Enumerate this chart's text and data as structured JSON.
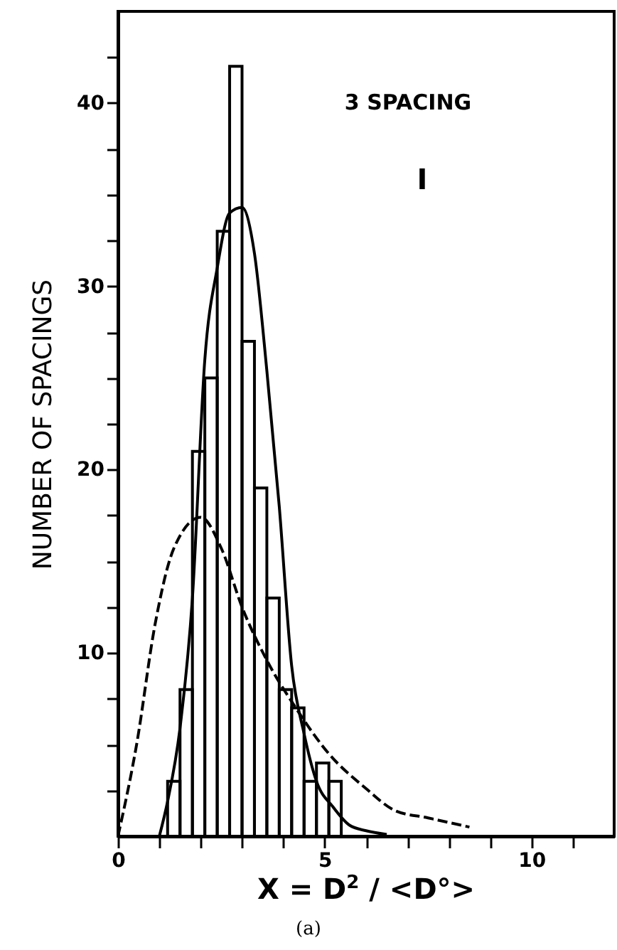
{
  "chart_data": {
    "type": "histogram",
    "xlabel": "X = D$^{2}$ / <D°>",
    "ylabel": "NUMBER OF SPACINGS",
    "annotations": [
      "3 SPACING",
      "I",
      "(a)"
    ],
    "xlim": [
      0,
      12
    ],
    "ylim": [
      0,
      45
    ],
    "xticks": [
      0,
      {
        "value": 1,
        "label": null
      },
      {
        "value": 2,
        "label": null
      },
      {
        "value": 3,
        "label": null
      },
      {
        "value": 4,
        "label": null
      },
      5,
      {
        "value": 6,
        "label": null
      },
      {
        "value": 7,
        "label": null
      },
      {
        "value": 8,
        "label": null
      },
      {
        "value": 9,
        "label": null
      },
      10,
      {
        "value": 11,
        "label": null
      }
    ],
    "yticks": [
      {
        "value": 2.5,
        "label": null
      },
      {
        "value": 5,
        "label": null
      },
      {
        "value": 7.5,
        "label": null
      },
      10,
      {
        "value": 12.5,
        "label": null
      },
      {
        "value": 15,
        "label": null
      },
      {
        "value": 17.5,
        "label": null
      },
      20,
      {
        "value": 22.5,
        "label": null
      },
      {
        "value": 25,
        "label": null
      },
      {
        "value": 27.5,
        "label": null
      },
      30,
      {
        "value": 32.5,
        "label": null
      },
      {
        "value": 35,
        "label": null
      },
      {
        "value": 37.5,
        "label": null
      },
      40,
      {
        "value": 42.5,
        "label": null
      }
    ],
    "series": [
      {
        "type": "histogram",
        "color": "#000000",
        "bins": [
          1.2,
          1.5,
          1.8,
          2.1,
          2.4,
          2.7,
          3.0,
          3.3,
          3.6,
          3.9,
          4.2,
          4.5,
          4.8,
          5.1,
          5.4
        ],
        "values": [
          3,
          8,
          21,
          25,
          33,
          42,
          27,
          19,
          13,
          8,
          7,
          3,
          4,
          3
        ]
      },
      {
        "type": "line",
        "color": "#000000",
        "line_style": "solid",
        "x": [
          1.0,
          1.2,
          1.5,
          1.8,
          2.1,
          2.4,
          2.7,
          3.0,
          3.3,
          3.6,
          3.9,
          4.2,
          4.5,
          4.8,
          5.2,
          5.6,
          6.0,
          6.5
        ],
        "values": [
          0,
          1.9,
          5.9,
          13,
          26,
          31,
          34,
          34.3,
          31.8,
          25.4,
          18,
          9.3,
          5.6,
          3.0,
          1.6,
          0.6,
          0.3,
          0.1
        ]
      },
      {
        "type": "line",
        "color": "#000000",
        "line_style": "dashed",
        "x": [
          0,
          0.45,
          0.9,
          1.35,
          2.0,
          2.5,
          3.0,
          3.6,
          4.3,
          5.1,
          6.0,
          6.7,
          7.5,
          8.5
        ],
        "values": [
          0,
          5,
          11.6,
          15.7,
          17.4,
          15.7,
          12.5,
          9.6,
          7.0,
          4.5,
          2.6,
          1.4,
          1.0,
          0.5
        ]
      }
    ]
  }
}
